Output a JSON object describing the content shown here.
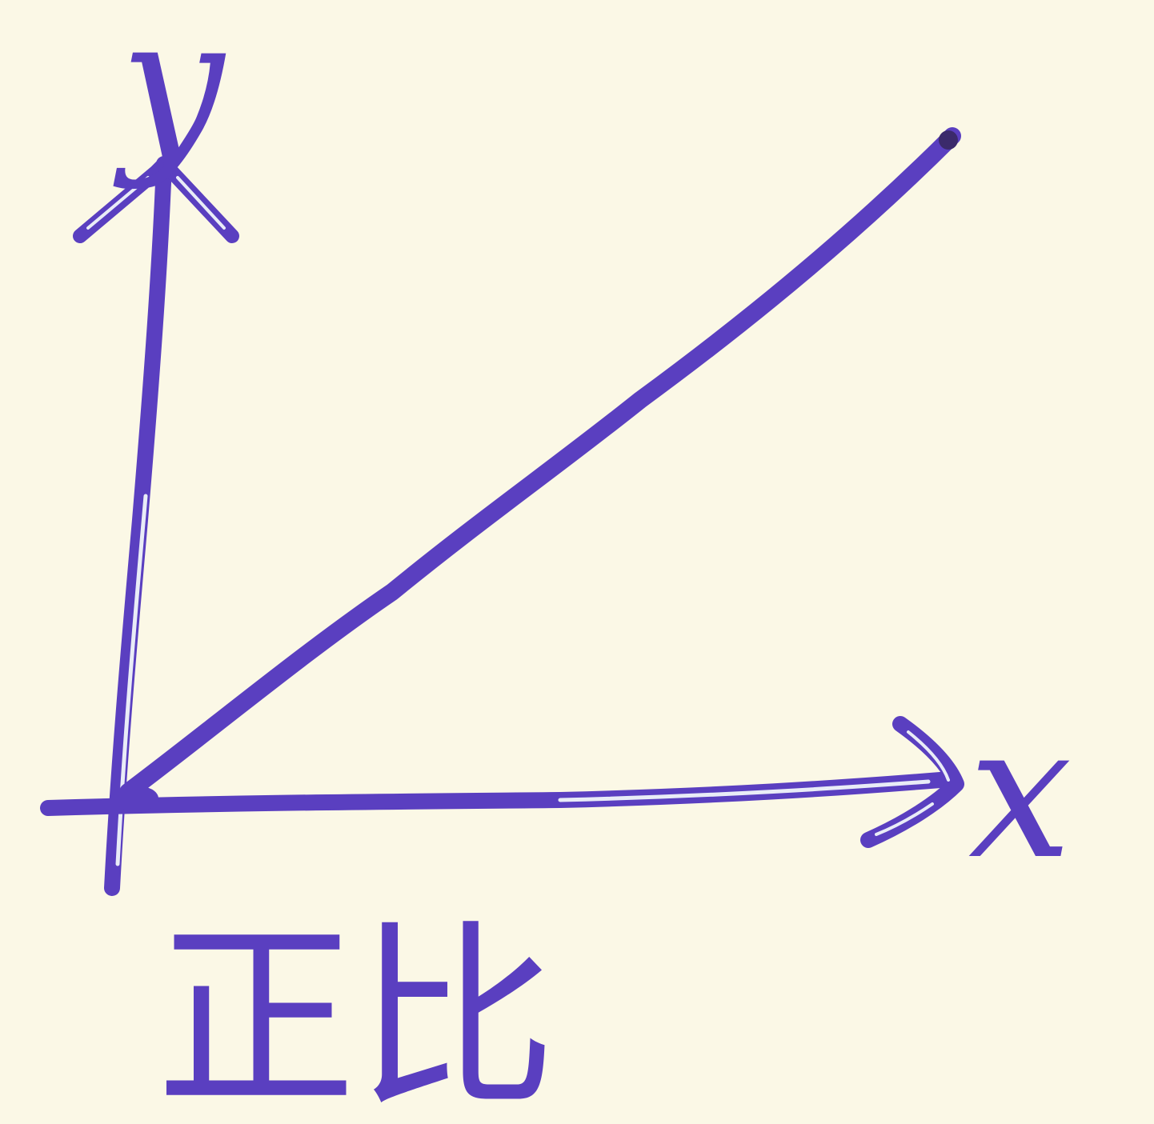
{
  "diagram": {
    "caption": "正比",
    "x_axis_label": "x",
    "y_axis_label": "y",
    "ink_color": "#5a3fc0",
    "highlight_color": "#e9ecf7",
    "paper_color": "#fbf8e6"
  }
}
